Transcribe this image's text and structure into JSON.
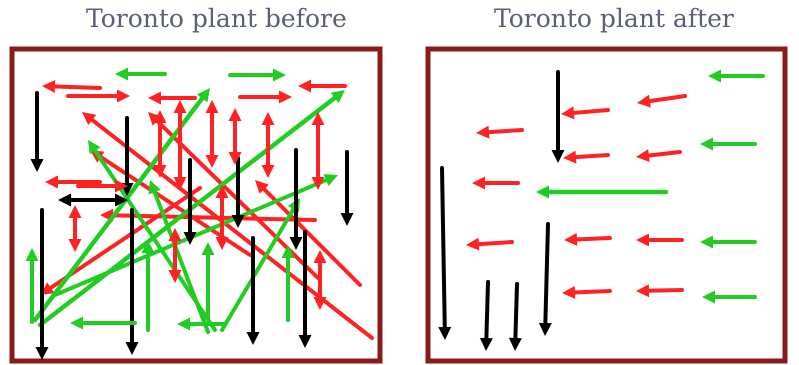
{
  "panels": {
    "before": {
      "title": "Toronto plant before"
    },
    "after": {
      "title": "Toronto plant after"
    }
  },
  "colors": {
    "border": "#8b1a1a",
    "red": "#ff2222",
    "green": "#22cc22",
    "black": "#000000"
  }
}
